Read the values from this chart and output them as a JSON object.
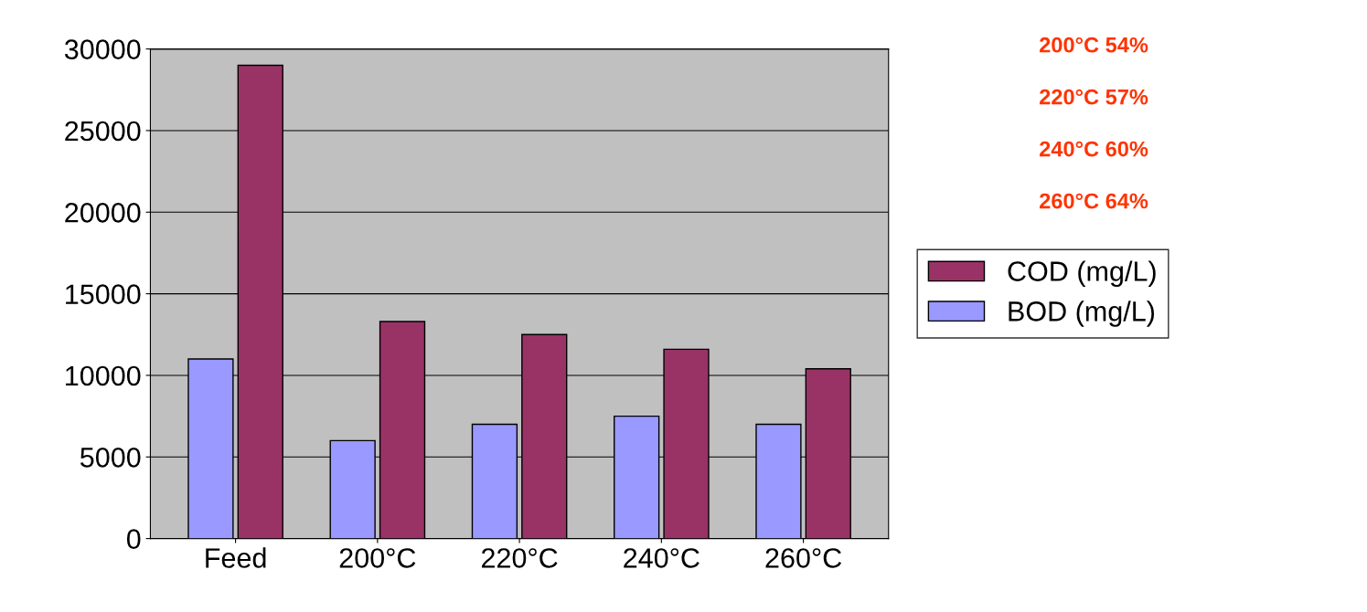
{
  "chart_data": {
    "type": "bar",
    "categories": [
      "Feed",
      "200°C",
      "220°C",
      "240°C",
      "260°C"
    ],
    "series": [
      {
        "name": "BOD (mg/L)",
        "color": "#9999ff",
        "values": [
          11000,
          6000,
          7000,
          7500,
          7000
        ]
      },
      {
        "name": "COD (mg/L)",
        "color": "#993366",
        "values": [
          29000,
          13300,
          12500,
          11600,
          10400
        ]
      }
    ],
    "ylim": [
      0,
      30000
    ],
    "yticks": [
      0,
      5000,
      10000,
      15000,
      20000,
      25000,
      30000
    ],
    "grid": "y",
    "legend": "right",
    "annotations": [
      "200°C 54%",
      "220°C 57%",
      "240°C 60%",
      "260°C 64%"
    ]
  }
}
